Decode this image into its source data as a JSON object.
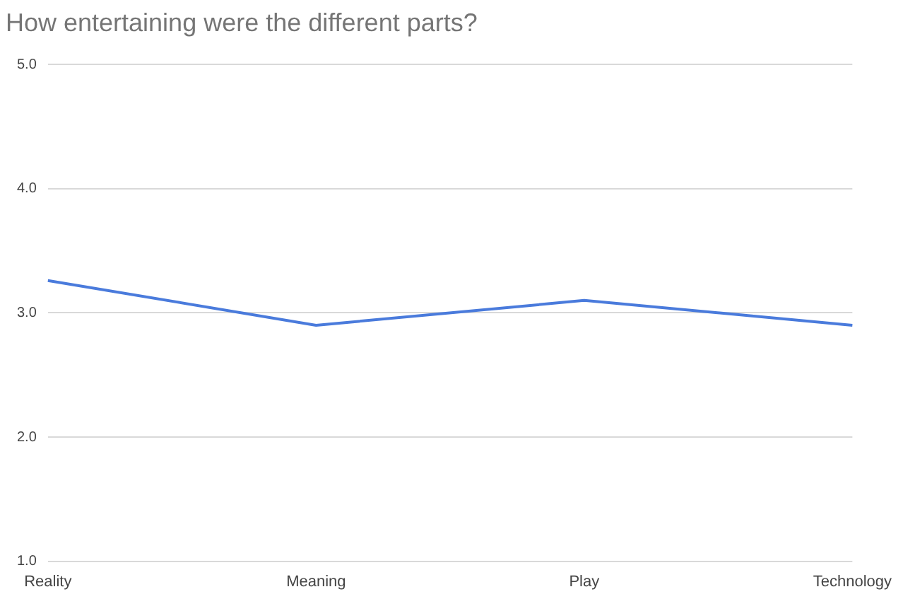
{
  "chart_data": {
    "type": "line",
    "title": "How entertaining were the different parts?",
    "categories": [
      "Reality",
      "Meaning",
      "Play",
      "Technology"
    ],
    "series": [
      {
        "color": "#4a7bdc",
        "values": [
          3.26,
          2.9,
          3.1,
          2.9
        ]
      }
    ],
    "ylim": [
      1,
      5
    ],
    "yticks": [
      {
        "value": 1,
        "label": "1.0"
      },
      {
        "value": 2,
        "label": "2.0"
      },
      {
        "value": 3,
        "label": "3.0"
      },
      {
        "value": 4,
        "label": "4.0"
      },
      {
        "value": 5,
        "label": "5.0"
      }
    ],
    "grid": "y",
    "legend": false,
    "marker": "none",
    "line_style": "solid"
  }
}
